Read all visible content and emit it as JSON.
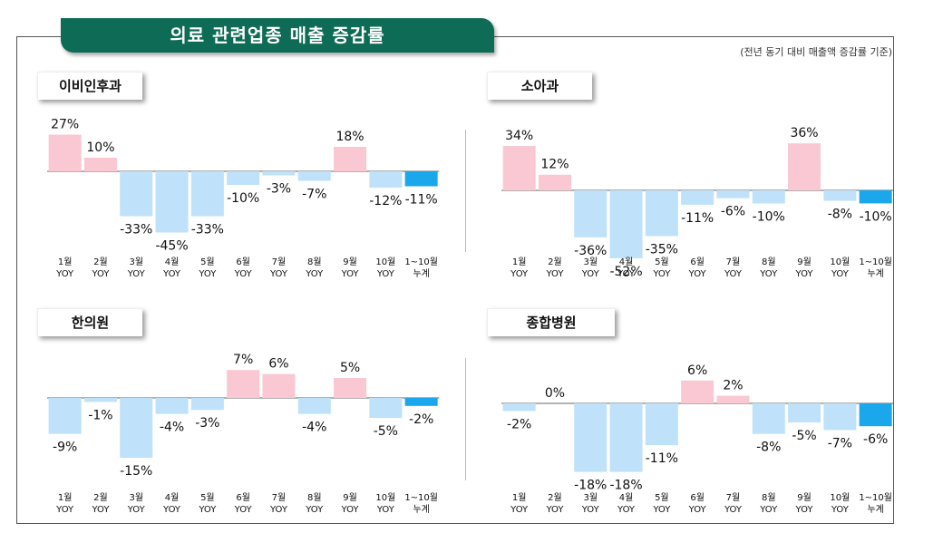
{
  "header": {
    "title": "의료 관련업종 매출 증감률",
    "note": "(전년 동기 대비 매출액 증감률 기준)"
  },
  "colors": {
    "positive": "#f9c8d3",
    "negative": "#bfe1f9",
    "cumulative": "#1aa7ec",
    "axis": "#666666"
  },
  "categories": [
    [
      "1월",
      "YOY"
    ],
    [
      "2월",
      "YOY"
    ],
    [
      "3월",
      "YOY"
    ],
    [
      "4월",
      "YOY"
    ],
    [
      "5월",
      "YOY"
    ],
    [
      "6월",
      "YOY"
    ],
    [
      "7월",
      "YOY"
    ],
    [
      "8월",
      "YOY"
    ],
    [
      "9월",
      "YOY"
    ],
    [
      "10월",
      "YOY"
    ],
    [
      "1~10월",
      "누계"
    ]
  ],
  "chart_data": [
    {
      "type": "bar",
      "title": "이비인후과",
      "categories": [
        "1월 YOY",
        "2월 YOY",
        "3월 YOY",
        "4월 YOY",
        "5월 YOY",
        "6월 YOY",
        "7월 YOY",
        "8월 YOY",
        "9월 YOY",
        "10월 YOY",
        "1~10월 누계"
      ],
      "values": [
        27,
        10,
        -33,
        -45,
        -33,
        -10,
        -3,
        -7,
        18,
        -12,
        -11
      ],
      "labels": [
        "27%",
        "10%",
        "-33%",
        "-45%",
        "-33%",
        "-10%",
        "-3%",
        "-7%",
        "18%",
        "-12%",
        "-11%"
      ]
    },
    {
      "type": "bar",
      "title": "소아과",
      "categories": [
        "1월 YOY",
        "2월 YOY",
        "3월 YOY",
        "4월 YOY",
        "5월 YOY",
        "6월 YOY",
        "7월 YOY",
        "8월 YOY",
        "9월 YOY",
        "10월 YOY",
        "1~10월 누계"
      ],
      "values": [
        34,
        12,
        -36,
        -52,
        -35,
        -11,
        -6,
        -10,
        36,
        -8,
        -10
      ],
      "labels": [
        "34%",
        "12%",
        "-36%",
        "-52%",
        "-35%",
        "-11%",
        "-6%",
        "-10%",
        "36%",
        "-8%",
        "-10%"
      ]
    },
    {
      "type": "bar",
      "title": "한의원",
      "categories": [
        "1월 YOY",
        "2월 YOY",
        "3월 YOY",
        "4월 YOY",
        "5월 YOY",
        "6월 YOY",
        "7월 YOY",
        "8월 YOY",
        "9월 YOY",
        "10월 YOY",
        "1~10월 누계"
      ],
      "values": [
        -9,
        -1,
        -15,
        -4,
        -3,
        7,
        6,
        -4,
        5,
        -5,
        -2
      ],
      "labels": [
        "-9%",
        "-1%",
        "-15%",
        "-4%",
        "-3%",
        "7%",
        "6%",
        "-4%",
        "5%",
        "-5%",
        "-2%"
      ]
    },
    {
      "type": "bar",
      "title": "종합병원",
      "categories": [
        "1월 YOY",
        "2월 YOY",
        "3월 YOY",
        "4월 YOY",
        "5월 YOY",
        "6월 YOY",
        "7월 YOY",
        "8월 YOY",
        "9월 YOY",
        "10월 YOY",
        "1~10월 누계"
      ],
      "values": [
        -2,
        0,
        -18,
        -18,
        -11,
        6,
        2,
        -8,
        -5,
        -7,
        -6
      ],
      "labels": [
        "-2%",
        "0%",
        "-18%",
        "-18%",
        "-11%",
        "6%",
        "2%",
        "-8%",
        "-5%",
        "-7%",
        "-6%"
      ]
    }
  ]
}
